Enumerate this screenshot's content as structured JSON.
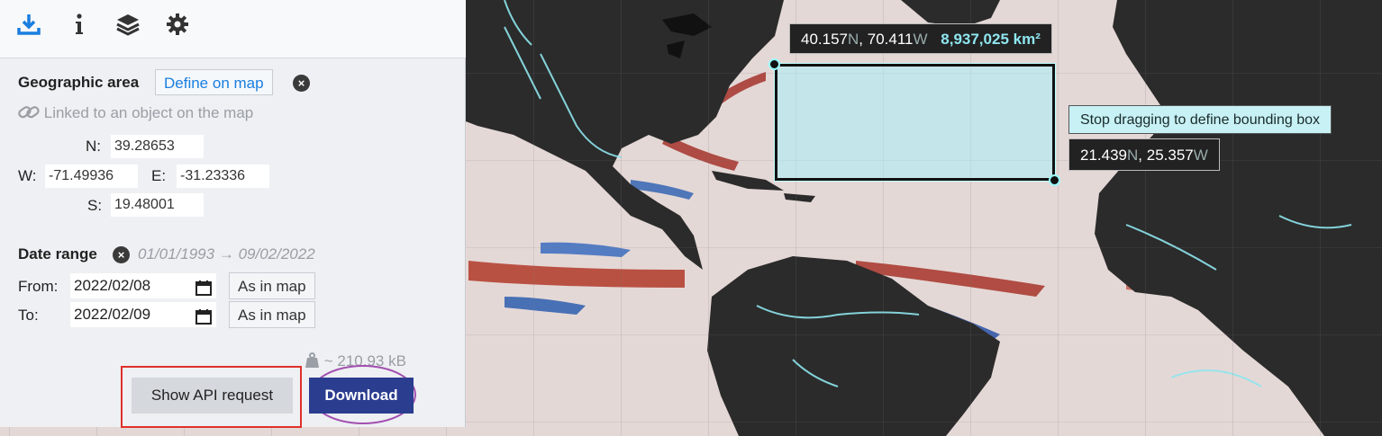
{
  "toolbar": {
    "icons": [
      "download-icon",
      "info-icon",
      "layers-icon",
      "gear-icon"
    ],
    "active_color": "#1a7ee0"
  },
  "geo": {
    "title": "Geographic area",
    "define_btn": "Define on map",
    "linked_text": "Linked to an object on the map",
    "n_label": "N:",
    "w_label": "W:",
    "e_label": "E:",
    "s_label": "S:",
    "n_value": "39.28653",
    "w_value": "-71.49936",
    "e_value": "-31.23336",
    "s_value": "19.48001"
  },
  "date": {
    "title": "Date range",
    "range_start": "01/01/1993",
    "arrow": "→",
    "range_end": "09/02/2022",
    "from_label": "From:",
    "to_label": "To:",
    "from_value": "2022/02/08",
    "to_value": "2022/02/09",
    "as_in_map": "As in map"
  },
  "size": {
    "text": "~ 210.93 kB"
  },
  "actions": {
    "api_btn": "Show API request",
    "download_btn": "Download",
    "download_color": "#2b3d8f"
  },
  "map": {
    "top_tip": {
      "lat": "40.157",
      "lat_dir": "N",
      "lon": "70.411",
      "lon_dir": "W",
      "area": "8,937,025 km²",
      "sep": ","
    },
    "hint": "Stop dragging to define bounding box",
    "bottom_tip": {
      "lat": "21.439",
      "lat_dir": "N",
      "lon": "25.357",
      "lon_dir": "W",
      "sep": ","
    }
  }
}
